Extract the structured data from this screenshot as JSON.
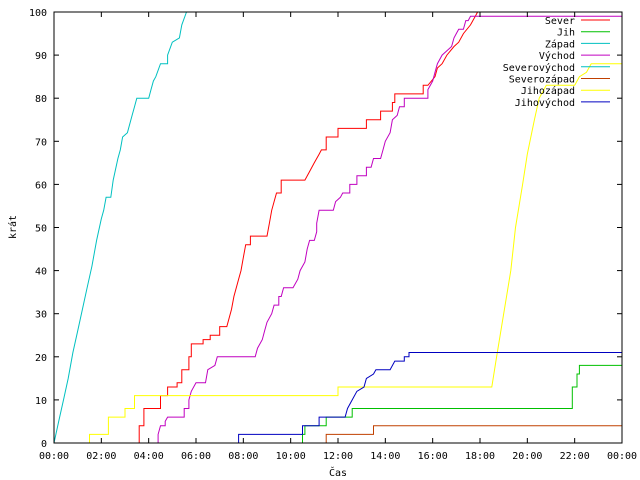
{
  "chart_data": {
    "type": "line",
    "xlabel": "Čas",
    "ylabel": "krát",
    "xlim": [
      0,
      24
    ],
    "ylim": [
      0,
      100
    ],
    "x_ticks": [
      0,
      2,
      4,
      6,
      8,
      10,
      12,
      14,
      16,
      18,
      20,
      22,
      24
    ],
    "x_tick_labels": [
      "00:00",
      "02:00",
      "04:00",
      "06:00",
      "08:00",
      "10:00",
      "12:00",
      "14:00",
      "16:00",
      "18:00",
      "20:00",
      "22:00",
      "00:00"
    ],
    "y_ticks": [
      0,
      10,
      20,
      30,
      40,
      50,
      60,
      70,
      80,
      90,
      100
    ],
    "y_tick_labels": [
      "0",
      "10",
      "20",
      "30",
      "40",
      "50",
      "60",
      "70",
      "80",
      "90",
      "100"
    ],
    "grid": false,
    "legend_position": "top-right",
    "series": [
      {
        "name": "Sever",
        "color": "#ff0000",
        "points": [
          [
            3.6,
            0
          ],
          [
            3.6,
            4
          ],
          [
            3.8,
            4
          ],
          [
            3.8,
            8
          ],
          [
            4.5,
            8
          ],
          [
            4.5,
            11
          ],
          [
            4.8,
            11
          ],
          [
            4.8,
            13
          ],
          [
            5.2,
            13
          ],
          [
            5.2,
            14
          ],
          [
            5.4,
            14
          ],
          [
            5.4,
            17
          ],
          [
            5.7,
            17
          ],
          [
            5.7,
            20
          ],
          [
            5.8,
            20
          ],
          [
            5.8,
            23
          ],
          [
            6.3,
            23
          ],
          [
            6.3,
            24
          ],
          [
            6.6,
            24
          ],
          [
            6.6,
            25
          ],
          [
            7.0,
            25
          ],
          [
            7.0,
            27
          ],
          [
            7.3,
            27
          ],
          [
            7.5,
            31
          ],
          [
            7.6,
            34
          ],
          [
            7.8,
            38
          ],
          [
            7.9,
            40
          ],
          [
            8.0,
            43
          ],
          [
            8.1,
            46
          ],
          [
            8.3,
            46
          ],
          [
            8.3,
            48
          ],
          [
            9.0,
            48
          ],
          [
            9.1,
            51
          ],
          [
            9.2,
            54
          ],
          [
            9.3,
            56
          ],
          [
            9.4,
            58
          ],
          [
            9.6,
            58
          ],
          [
            9.6,
            61
          ],
          [
            10.6,
            61
          ],
          [
            10.8,
            63
          ],
          [
            11.0,
            65
          ],
          [
            11.2,
            67
          ],
          [
            11.3,
            68
          ],
          [
            11.5,
            68
          ],
          [
            11.5,
            71
          ],
          [
            12.0,
            71
          ],
          [
            12.0,
            73
          ],
          [
            13.2,
            73
          ],
          [
            13.2,
            75
          ],
          [
            13.8,
            75
          ],
          [
            13.8,
            77
          ],
          [
            14.3,
            77
          ],
          [
            14.3,
            79
          ],
          [
            14.4,
            79
          ],
          [
            14.4,
            81
          ],
          [
            15.6,
            81
          ],
          [
            15.6,
            83
          ],
          [
            15.8,
            83
          ],
          [
            16.1,
            85
          ],
          [
            16.2,
            87
          ],
          [
            16.4,
            88
          ],
          [
            16.6,
            90
          ],
          [
            16.9,
            92
          ],
          [
            17.1,
            93
          ],
          [
            17.3,
            95
          ],
          [
            17.6,
            97
          ],
          [
            17.8,
            99
          ],
          [
            17.9,
            100
          ]
        ]
      },
      {
        "name": "Jih",
        "color": "#00c000",
        "points": [
          [
            10.5,
            0
          ],
          [
            10.5,
            2
          ],
          [
            10.6,
            2
          ],
          [
            10.6,
            4
          ],
          [
            11.5,
            4
          ],
          [
            11.5,
            6
          ],
          [
            12.6,
            6
          ],
          [
            12.6,
            8
          ],
          [
            21.9,
            8
          ],
          [
            21.9,
            13
          ],
          [
            22.1,
            13
          ],
          [
            22.1,
            16
          ],
          [
            22.2,
            16
          ],
          [
            22.2,
            18
          ],
          [
            24.0,
            18
          ]
        ]
      },
      {
        "name": "Západ",
        "color": "#00c0c0",
        "points": [
          [
            0.0,
            0
          ],
          [
            0.2,
            5
          ],
          [
            0.4,
            10
          ],
          [
            0.6,
            15
          ],
          [
            0.8,
            21
          ],
          [
            1.0,
            26
          ],
          [
            1.2,
            31
          ],
          [
            1.4,
            36
          ],
          [
            1.6,
            41
          ],
          [
            1.8,
            47
          ],
          [
            2.0,
            52
          ],
          [
            2.1,
            54
          ],
          [
            2.2,
            57
          ],
          [
            2.4,
            57
          ],
          [
            2.5,
            61
          ],
          [
            2.7,
            66
          ],
          [
            2.8,
            68
          ],
          [
            2.9,
            71
          ],
          [
            3.1,
            72
          ],
          [
            3.3,
            76
          ],
          [
            3.4,
            78
          ],
          [
            3.5,
            80
          ],
          [
            4.0,
            80
          ],
          [
            4.1,
            82
          ],
          [
            4.2,
            84
          ],
          [
            4.3,
            85
          ],
          [
            4.5,
            88
          ],
          [
            4.8,
            88
          ],
          [
            4.8,
            90
          ],
          [
            5.0,
            93
          ],
          [
            5.3,
            94
          ],
          [
            5.4,
            97
          ],
          [
            5.6,
            100
          ]
        ]
      },
      {
        "name": "Východ",
        "color": "#c000c0",
        "points": [
          [
            4.4,
            0
          ],
          [
            4.4,
            2
          ],
          [
            4.5,
            4
          ],
          [
            4.7,
            4
          ],
          [
            4.7,
            5
          ],
          [
            4.8,
            6
          ],
          [
            5.5,
            6
          ],
          [
            5.5,
            8
          ],
          [
            5.7,
            8
          ],
          [
            5.7,
            10
          ],
          [
            5.8,
            12
          ],
          [
            6.0,
            14
          ],
          [
            6.4,
            14
          ],
          [
            6.5,
            17
          ],
          [
            6.8,
            18
          ],
          [
            6.9,
            20
          ],
          [
            8.5,
            20
          ],
          [
            8.6,
            22
          ],
          [
            8.8,
            24
          ],
          [
            8.9,
            26
          ],
          [
            9.0,
            28
          ],
          [
            9.2,
            30
          ],
          [
            9.3,
            32
          ],
          [
            9.5,
            32
          ],
          [
            9.5,
            34
          ],
          [
            9.6,
            34
          ],
          [
            9.7,
            36
          ],
          [
            10.1,
            36
          ],
          [
            10.3,
            38
          ],
          [
            10.4,
            40
          ],
          [
            10.6,
            42
          ],
          [
            10.7,
            45
          ],
          [
            10.8,
            47
          ],
          [
            11.0,
            47
          ],
          [
            11.1,
            49
          ],
          [
            11.1,
            51
          ],
          [
            11.2,
            54
          ],
          [
            11.8,
            54
          ],
          [
            11.9,
            56
          ],
          [
            12.1,
            57
          ],
          [
            12.2,
            58
          ],
          [
            12.5,
            58
          ],
          [
            12.5,
            60
          ],
          [
            12.8,
            60
          ],
          [
            12.8,
            62
          ],
          [
            13.2,
            62
          ],
          [
            13.2,
            64
          ],
          [
            13.4,
            64
          ],
          [
            13.5,
            66
          ],
          [
            13.8,
            66
          ],
          [
            13.9,
            68
          ],
          [
            14.0,
            70
          ],
          [
            14.2,
            72
          ],
          [
            14.3,
            75
          ],
          [
            14.5,
            76
          ],
          [
            14.6,
            78
          ],
          [
            14.8,
            78
          ],
          [
            14.8,
            80
          ],
          [
            15.8,
            80
          ],
          [
            15.8,
            82
          ],
          [
            16.0,
            84
          ],
          [
            16.1,
            86
          ],
          [
            16.2,
            88
          ],
          [
            16.4,
            90
          ],
          [
            16.6,
            91
          ],
          [
            16.8,
            92
          ],
          [
            16.9,
            94
          ],
          [
            17.0,
            95
          ],
          [
            17.1,
            96
          ],
          [
            17.3,
            96
          ],
          [
            17.4,
            98
          ],
          [
            17.5,
            98
          ],
          [
            17.6,
            99
          ],
          [
            24.0,
            99
          ]
        ]
      },
      {
        "name": "Severovýchod",
        "color": "#00c0c0",
        "points": []
      },
      {
        "name": "Severozápad",
        "color": "#c04000",
        "points": [
          [
            11.5,
            0
          ],
          [
            11.5,
            2
          ],
          [
            13.5,
            2
          ],
          [
            13.5,
            4
          ],
          [
            24.0,
            4
          ]
        ]
      },
      {
        "name": "Jihozápad",
        "color": "#ffff00",
        "points": [
          [
            1.5,
            0
          ],
          [
            1.5,
            2
          ],
          [
            2.3,
            2
          ],
          [
            2.3,
            6
          ],
          [
            3.0,
            6
          ],
          [
            3.0,
            8
          ],
          [
            3.4,
            8
          ],
          [
            3.4,
            11
          ],
          [
            12.0,
            11
          ],
          [
            12.0,
            13
          ],
          [
            18.5,
            13
          ],
          [
            18.7,
            20
          ],
          [
            19.0,
            30
          ],
          [
            19.3,
            40
          ],
          [
            19.5,
            50
          ],
          [
            19.8,
            60
          ],
          [
            20.0,
            67
          ],
          [
            20.3,
            75
          ],
          [
            20.5,
            80
          ],
          [
            20.8,
            83
          ],
          [
            22.0,
            83
          ],
          [
            22.2,
            85
          ],
          [
            22.5,
            86
          ],
          [
            22.7,
            88
          ],
          [
            24.0,
            88
          ]
        ]
      },
      {
        "name": "Jihovýchod",
        "color": "#0000c0",
        "points": [
          [
            7.8,
            0
          ],
          [
            7.8,
            2
          ],
          [
            10.5,
            2
          ],
          [
            10.5,
            4
          ],
          [
            11.2,
            4
          ],
          [
            11.2,
            6
          ],
          [
            12.3,
            6
          ],
          [
            12.4,
            8
          ],
          [
            12.6,
            10
          ],
          [
            12.8,
            12
          ],
          [
            13.1,
            13
          ],
          [
            13.2,
            15
          ],
          [
            13.5,
            16
          ],
          [
            13.6,
            17
          ],
          [
            14.2,
            17
          ],
          [
            14.4,
            19
          ],
          [
            14.8,
            19
          ],
          [
            14.8,
            20
          ],
          [
            15.0,
            20
          ],
          [
            15.0,
            21
          ],
          [
            24.0,
            21
          ]
        ]
      }
    ]
  }
}
